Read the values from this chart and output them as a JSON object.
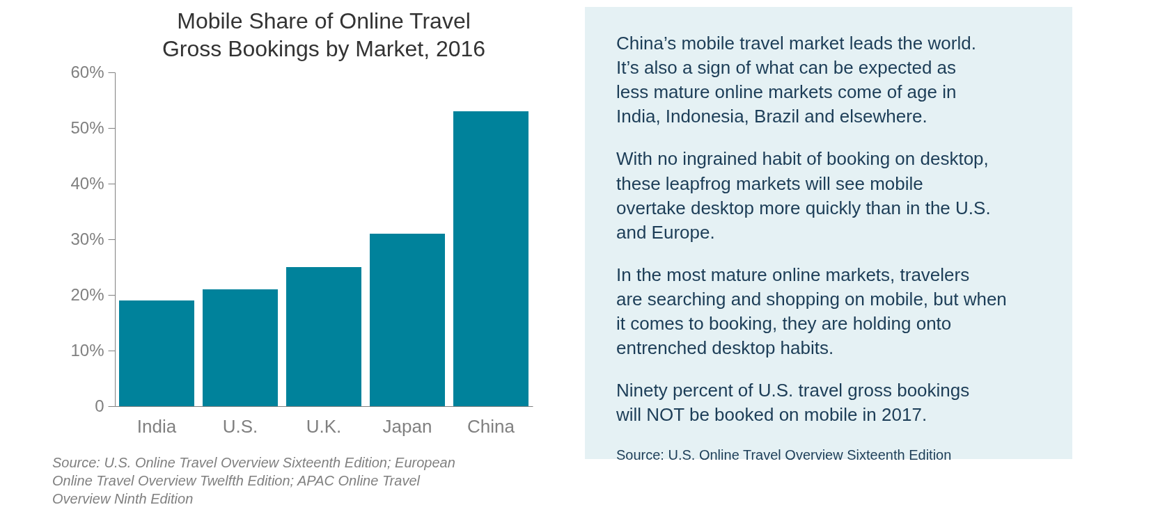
{
  "chart_data": [
    {
      "type": "bar",
      "title": "Mobile Share of Online Travel Gross Bookings by Market, 2016",
      "categories": [
        "India",
        "U.S.",
        "U.K.",
        "Japan",
        "China"
      ],
      "values": [
        19,
        21,
        25,
        31,
        53
      ],
      "color": "#00829b",
      "ylim": [
        0,
        60
      ],
      "yticks": [
        0,
        {
          "value": 10,
          "label": "10%"
        },
        {
          "value": 20,
          "label": "20%"
        },
        {
          "value": 30,
          "label": "30%"
        },
        {
          "value": 40,
          "label": "40%"
        },
        {
          "value": 50,
          "label": "50%"
        },
        {
          "value": 60,
          "label": "60%"
        }
      ],
      "grid": false,
      "annotations": [
        "Source: U.S. Online Travel Overview Sixteenth Edition; European Online Travel Overview Twelfth Edition; APAC Online Travel Overview Ninth Edition"
      ]
    },
    {
      "type": "other",
      "annotations": [
        "China’s mobile travel market leads the world.",
        "It’s also a sign of what can be expected as less mature online markets come of age in India, Indonesia, Brazil and elsewhere.",
        "With no ingrained habit of booking on desktop, these leapfrog markets will see mobile overtake desktop more quickly than in the U.S. and Europe.",
        "In the most mature online markets, travelers are searching and shopping on mobile, but when it comes to booking, they are holding onto entrenched desktop habits.",
        "Ninety percent of U.S. travel gross bookings will NOT be booked on mobile in 2017.",
        "Source: U.S. Online Travel Overview Sixteenth Edition"
      ]
    }
  ]
}
